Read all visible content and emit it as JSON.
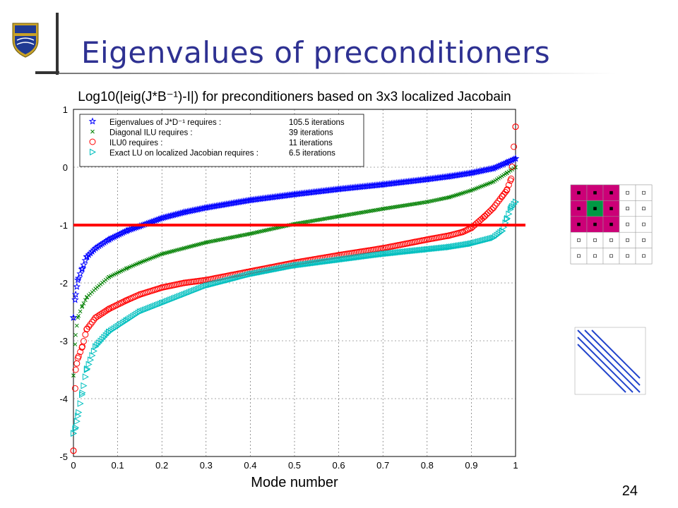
{
  "slide": {
    "title": "Eigenvalues of preconditioners",
    "page_number": "24"
  },
  "colors": {
    "title": "#2e3192",
    "blue": "#0000ff",
    "green": "#008000",
    "red": "#ff0000",
    "cyan": "#00bfbf",
    "threshold": "#ff0000",
    "magenta": "#cc0077",
    "matrix_green": "#009944"
  },
  "chart_data": {
    "type": "scatter",
    "title": "Log10(|eig(J*B⁻¹)-I|) for preconditioners based on 3x3 localized Jacobain",
    "xlabel": "Mode number",
    "ylabel": "",
    "xlim": [
      0,
      1
    ],
    "ylim": [
      -5,
      1
    ],
    "xticks": [
      "0",
      "0.1",
      "0.2",
      "0.3",
      "0.4",
      "0.5",
      "0.6",
      "0.7",
      "0.8",
      "0.9",
      "1"
    ],
    "yticks": [
      "1",
      "0",
      "-1",
      "-2",
      "-3",
      "-4",
      "-5"
    ],
    "grid": true,
    "legend_position": "top-left",
    "threshold_line": {
      "y": -1
    },
    "series": [
      {
        "name": "Eigenvalues of J*D⁻¹ requires :",
        "iterations": "105.5 iterations",
        "marker": "star",
        "color": "#0000ff",
        "x": [
          0.0,
          0.005,
          0.01,
          0.02,
          0.03,
          0.05,
          0.08,
          0.12,
          0.15,
          0.2,
          0.25,
          0.3,
          0.4,
          0.5,
          0.6,
          0.7,
          0.8,
          0.85,
          0.9,
          0.95,
          0.98,
          1.0
        ],
        "y": [
          -2.6,
          -2.2,
          -1.95,
          -1.75,
          -1.55,
          -1.4,
          -1.25,
          -1.1,
          -1.02,
          -0.88,
          -0.78,
          -0.7,
          -0.57,
          -0.47,
          -0.38,
          -0.3,
          -0.21,
          -0.16,
          -0.1,
          -0.02,
          0.08,
          0.15
        ]
      },
      {
        "name": "Diagonal ILU requires :",
        "iterations": "39 iterations",
        "marker": "x",
        "color": "#008000",
        "x": [
          0.0,
          0.005,
          0.01,
          0.02,
          0.03,
          0.05,
          0.08,
          0.12,
          0.15,
          0.2,
          0.25,
          0.3,
          0.4,
          0.5,
          0.6,
          0.7,
          0.8,
          0.85,
          0.9,
          0.95,
          0.98,
          1.0
        ],
        "y": [
          -3.6,
          -2.9,
          -2.6,
          -2.4,
          -2.25,
          -2.1,
          -1.9,
          -1.75,
          -1.65,
          -1.5,
          -1.4,
          -1.3,
          -1.15,
          -0.98,
          -0.85,
          -0.72,
          -0.6,
          -0.52,
          -0.4,
          -0.25,
          -0.1,
          0.0
        ]
      },
      {
        "name": "ILU0 requires :",
        "iterations": "11 iterations",
        "marker": "circle",
        "color": "#ff0000",
        "x": [
          0.0,
          0.005,
          0.01,
          0.02,
          0.03,
          0.05,
          0.08,
          0.12,
          0.15,
          0.2,
          0.25,
          0.3,
          0.4,
          0.5,
          0.6,
          0.7,
          0.8,
          0.85,
          0.88,
          0.9,
          0.93,
          0.95,
          0.97,
          0.98,
          0.99,
          1.0
        ],
        "y": [
          -4.9,
          -3.5,
          -3.3,
          -3.1,
          -2.8,
          -2.6,
          -2.45,
          -2.3,
          -2.2,
          -2.08,
          -2.0,
          -1.95,
          -1.8,
          -1.65,
          -1.52,
          -1.4,
          -1.25,
          -1.18,
          -1.12,
          -1.05,
          -0.85,
          -0.7,
          -0.5,
          -0.4,
          -0.2,
          0.7
        ]
      },
      {
        "name": "Exact LU on localized Jacobian requires :",
        "iterations": "6.5 iterations",
        "marker": "triangle",
        "color": "#00bfbf",
        "x": [
          0.0,
          0.005,
          0.01,
          0.02,
          0.03,
          0.05,
          0.08,
          0.12,
          0.15,
          0.2,
          0.25,
          0.3,
          0.4,
          0.5,
          0.6,
          0.7,
          0.8,
          0.85,
          0.9,
          0.95,
          0.97,
          0.98,
          0.99,
          1.0
        ],
        "y": [
          -4.6,
          -4.5,
          -4.3,
          -3.9,
          -3.5,
          -3.1,
          -2.85,
          -2.65,
          -2.5,
          -2.35,
          -2.2,
          -2.05,
          -1.85,
          -1.7,
          -1.6,
          -1.5,
          -1.42,
          -1.38,
          -1.32,
          -1.22,
          -1.1,
          -0.9,
          -0.7,
          -0.6
        ]
      }
    ]
  }
}
